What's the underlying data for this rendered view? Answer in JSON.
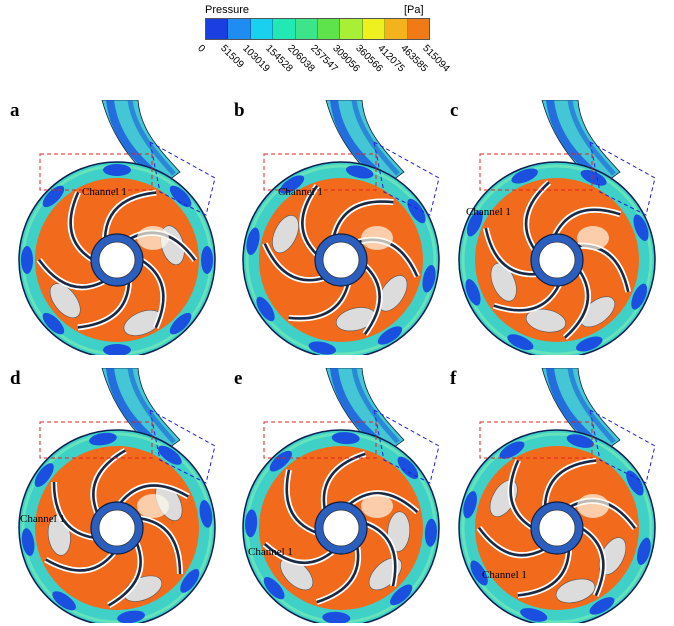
{
  "legend": {
    "title": "Pressure",
    "unit": "[Pa]",
    "ticks": [
      "0",
      "51509",
      "103019",
      "154528",
      "206038",
      "257547",
      "309056",
      "360566",
      "412075",
      "463585",
      "515094"
    ],
    "colors": [
      "#1a3fe0",
      "#1f8cf2",
      "#19d0ef",
      "#22e8b4",
      "#3ee48a",
      "#5fe34a",
      "#a9ef36",
      "#eef020",
      "#f4b21c",
      "#f07a16"
    ]
  },
  "colors": {
    "impeller": "#f26a1b",
    "high_pressure_blue": "#1a4fe0",
    "volute_fill": "#3fd0c8",
    "box_red": "#e02020",
    "box_blue": "#2020d8"
  },
  "panels": [
    {
      "letter": "a",
      "channel_label": "Channel 1"
    },
    {
      "letter": "b",
      "channel_label": "Channel 1"
    },
    {
      "letter": "c",
      "channel_label": "Channel 1"
    },
    {
      "letter": "d",
      "channel_label": "Channel 1"
    },
    {
      "letter": "e",
      "channel_label": "Channel 1"
    },
    {
      "letter": "f",
      "channel_label": "Channel 1"
    }
  ]
}
